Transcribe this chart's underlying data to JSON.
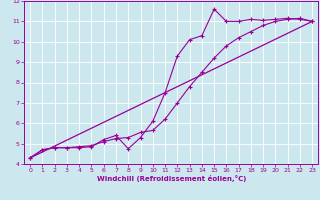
{
  "xlabel": "Windchill (Refroidissement éolien,°C)",
  "bg_color": "#cce8ee",
  "line_color": "#990099",
  "grid_color": "#ffffff",
  "xlim": [
    -0.5,
    23.5
  ],
  "ylim": [
    4,
    12
  ],
  "xticks": [
    0,
    1,
    2,
    3,
    4,
    5,
    6,
    7,
    8,
    9,
    10,
    11,
    12,
    13,
    14,
    15,
    16,
    17,
    18,
    19,
    20,
    21,
    22,
    23
  ],
  "yticks": [
    4,
    5,
    6,
    7,
    8,
    9,
    10,
    11,
    12
  ],
  "line1_x": [
    0,
    1,
    2,
    3,
    4,
    5,
    6,
    7,
    8,
    9,
    10,
    11,
    12,
    13,
    14,
    15,
    16,
    17,
    18,
    19,
    20,
    21,
    22,
    23
  ],
  "line1_y": [
    4.3,
    4.7,
    4.8,
    4.8,
    4.8,
    4.85,
    5.2,
    5.4,
    4.75,
    5.3,
    6.1,
    7.5,
    9.3,
    10.1,
    10.3,
    11.6,
    11.0,
    11.0,
    11.1,
    11.05,
    11.1,
    11.15,
    11.1,
    11.0
  ],
  "line2_x": [
    0,
    1,
    2,
    3,
    4,
    5,
    6,
    7,
    8,
    9,
    10,
    11,
    12,
    13,
    14,
    15,
    16,
    17,
    18,
    19,
    20,
    21,
    22,
    23
  ],
  "line2_y": [
    4.3,
    4.7,
    4.8,
    4.8,
    4.85,
    4.9,
    5.1,
    5.25,
    5.3,
    5.55,
    5.65,
    6.2,
    7.0,
    7.8,
    8.5,
    9.2,
    9.8,
    10.2,
    10.5,
    10.8,
    11.0,
    11.1,
    11.15,
    11.0
  ],
  "line3_x": [
    0,
    23
  ],
  "line3_y": [
    4.3,
    11.0
  ]
}
